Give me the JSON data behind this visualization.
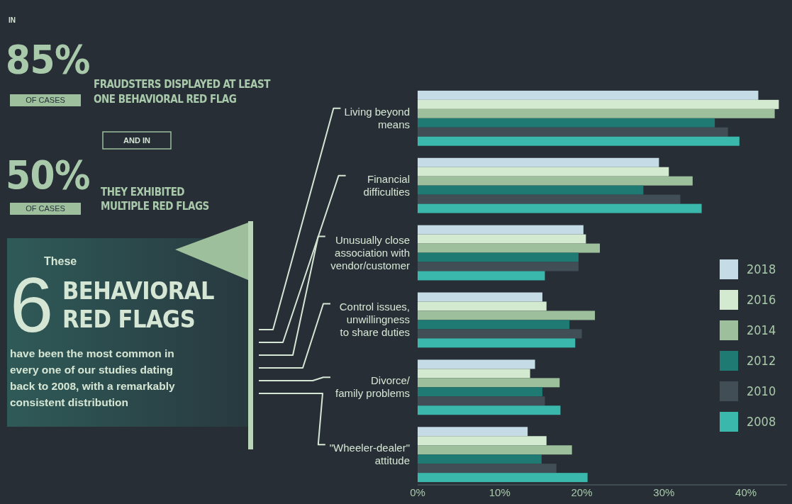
{
  "chart_data": {
    "type": "bar",
    "orientation": "horizontal",
    "categories": [
      "Living beyond\nmeans",
      "Financial\ndifficulties",
      "Unusually close\nassociation with\nvendor/customer",
      "Control issues,\nunwillingness\nto share duties",
      "Divorce/\nfamily problems",
      "\"Wheeler-dealer\"\nattitude"
    ],
    "series": [
      {
        "name": "2018",
        "color": "#c5dce6",
        "values": [
          41.5,
          29.4,
          20.2,
          15.2,
          14.3,
          13.4
        ]
      },
      {
        "name": "2016",
        "color": "#d4ead0",
        "values": [
          44,
          30.6,
          20.5,
          15.7,
          13.7,
          15.7
        ]
      },
      {
        "name": "2014",
        "color": "#9dbf9c",
        "values": [
          43.5,
          33.5,
          22.2,
          21.6,
          17.3,
          18.8
        ]
      },
      {
        "name": "2012",
        "color": "#1f7a73",
        "values": [
          36.2,
          27.5,
          19.6,
          18.5,
          15.2,
          15.1
        ]
      },
      {
        "name": "2010",
        "color": "#424e55",
        "values": [
          37.8,
          32,
          19.6,
          20,
          15.5,
          16.9
        ]
      },
      {
        "name": "2008",
        "color": "#3ab8ab",
        "values": [
          39.2,
          34.6,
          15.5,
          19.2,
          17.4,
          20.7
        ]
      }
    ],
    "xlim": [
      0,
      45
    ],
    "xticks": [
      {
        "value": 0,
        "label": "0%"
      },
      {
        "value": 10,
        "label": "10%"
      },
      {
        "value": 20,
        "label": "20%"
      },
      {
        "value": 30,
        "label": "30%"
      },
      {
        "value": 40,
        "label": "40%"
      }
    ],
    "legend": "right",
    "grid": false,
    "annotations": [
      "IN",
      "85%",
      "OF CASES",
      "FRAUDSTERS DISPLAYED AT LEAST\nONE BEHAVIORAL RED FLAG",
      "AND IN",
      "50%",
      "OF CASES",
      "THEY EXHIBITED\nMULTIPLE RED FLAGS",
      "These",
      "6",
      "BEHAVIORAL\nRED FLAGS",
      "have been the most common in\nevery one of our studies dating\nback to 2008, with a remarkably\nconsistent distribution"
    ]
  }
}
